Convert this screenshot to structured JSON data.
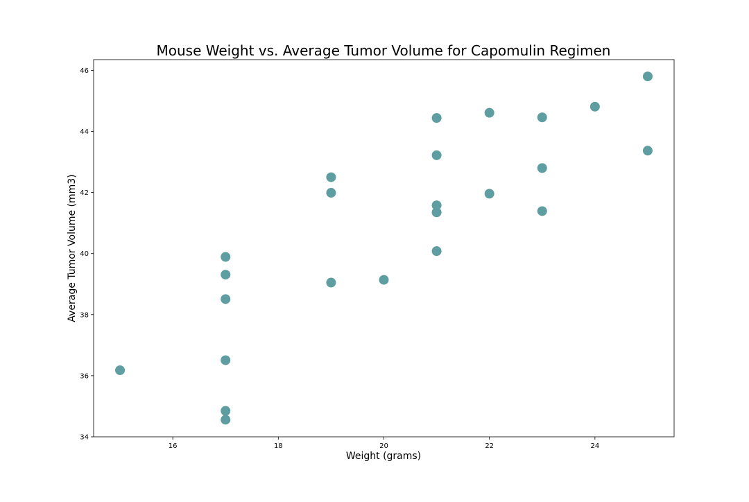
{
  "chart_data": {
    "type": "scatter",
    "title": "Mouse Weight vs. Average Tumor Volume for Capomulin Regimen",
    "xlabel": "Weight (grams)",
    "ylabel": "Average Tumor Volume (mm3)",
    "xlim": [
      14.5,
      25.5
    ],
    "ylim": [
      34,
      46.35
    ],
    "xticks": [
      "16",
      "18",
      "20",
      "22",
      "24"
    ],
    "yticks": [
      "34",
      "36",
      "38",
      "40",
      "42",
      "44",
      "46"
    ],
    "grid": false,
    "marker_color": "#5f9ea0",
    "points": [
      {
        "x": 15,
        "y": 36.18
      },
      {
        "x": 17,
        "y": 39.89
      },
      {
        "x": 17,
        "y": 39.31
      },
      {
        "x": 17,
        "y": 38.51
      },
      {
        "x": 17,
        "y": 36.51
      },
      {
        "x": 17,
        "y": 34.85
      },
      {
        "x": 17,
        "y": 34.56
      },
      {
        "x": 19,
        "y": 42.5
      },
      {
        "x": 19,
        "y": 41.99
      },
      {
        "x": 19,
        "y": 39.05
      },
      {
        "x": 20,
        "y": 39.14
      },
      {
        "x": 21,
        "y": 44.44
      },
      {
        "x": 21,
        "y": 43.22
      },
      {
        "x": 21,
        "y": 41.58
      },
      {
        "x": 21,
        "y": 41.35
      },
      {
        "x": 21,
        "y": 40.08
      },
      {
        "x": 22,
        "y": 44.61
      },
      {
        "x": 22,
        "y": 41.96
      },
      {
        "x": 23,
        "y": 44.46
      },
      {
        "x": 23,
        "y": 42.8
      },
      {
        "x": 23,
        "y": 41.39
      },
      {
        "x": 24,
        "y": 44.81
      },
      {
        "x": 25,
        "y": 45.8
      },
      {
        "x": 25,
        "y": 43.37
      }
    ]
  }
}
